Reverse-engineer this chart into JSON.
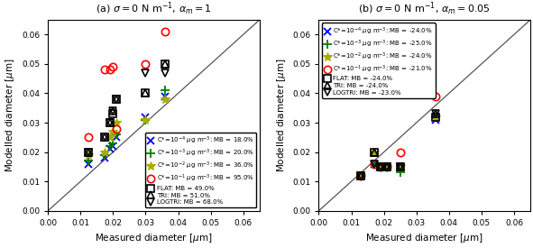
{
  "panel_a": {
    "title": "(a) $\\sigma = 0$ N m$^{-1}$, $\\alpha_m = 1$",
    "xlabel": "Measured diameter [$\\mu$m]",
    "ylabel": "Modelled diameter [$\\mu$m]",
    "xlim": [
      0.0,
      0.065
    ],
    "ylim": [
      0.0,
      0.065
    ],
    "xticks": [
      0.0,
      0.01,
      0.02,
      0.03,
      0.04,
      0.05,
      0.06
    ],
    "yticks": [
      0.0,
      0.01,
      0.02,
      0.03,
      0.04,
      0.05,
      0.06
    ],
    "series": {
      "C1e-4": {
        "label": "C*=10$^{-4}$ $\\mu$g m$^{-3}$: MB = 18.0%",
        "color": "blue",
        "marker": "x",
        "x": [
          0.0125,
          0.0175,
          0.019,
          0.02,
          0.021,
          0.03,
          0.036
        ],
        "y": [
          0.016,
          0.018,
          0.021,
          0.022,
          0.025,
          0.032,
          0.039
        ]
      },
      "C1e-3": {
        "label": "C*=10$^{-3}$ $\\mu$g m$^{-3}$: MB = 20.0%",
        "color": "green",
        "marker": "+",
        "x": [
          0.0125,
          0.0175,
          0.019,
          0.02,
          0.021,
          0.03,
          0.036
        ],
        "y": [
          0.017,
          0.019,
          0.022,
          0.023,
          0.026,
          0.031,
          0.041
        ]
      },
      "C1e-2": {
        "label": "C*=10$^{-2}$ $\\mu$g m$^{-3}$: MB = 36.0%",
        "color": "#aaaa00",
        "marker": "*",
        "x": [
          0.0125,
          0.0175,
          0.019,
          0.02,
          0.021,
          0.03,
          0.036
        ],
        "y": [
          0.019,
          0.02,
          0.025,
          0.027,
          0.03,
          0.031,
          0.038
        ]
      },
      "C1e-1": {
        "label": "C*=10$^{-1}$ $\\mu$g m$^{-3}$: MB = 95.0%",
        "color": "red",
        "marker": "o",
        "x": [
          0.0125,
          0.0175,
          0.019,
          0.02,
          0.021,
          0.03,
          0.036
        ],
        "y": [
          0.025,
          0.048,
          0.048,
          0.049,
          0.028,
          0.05,
          0.061
        ]
      },
      "FLAT": {
        "label": "FLAT: MB = 49.0%",
        "color": "black",
        "marker": "s",
        "x": [
          0.0125,
          0.0175,
          0.019,
          0.02,
          0.021,
          0.03,
          0.036
        ],
        "y": [
          0.02,
          0.025,
          0.03,
          0.033,
          0.038,
          0.04,
          0.05
        ]
      },
      "TRI": {
        "label": "TRI: MB = 51.0%",
        "color": "black",
        "marker": "^",
        "x": [
          0.0125,
          0.0175,
          0.019,
          0.02,
          0.021,
          0.03,
          0.036
        ],
        "y": [
          0.02,
          0.025,
          0.03,
          0.034,
          0.038,
          0.04,
          0.05
        ]
      },
      "LOGTRI": {
        "label": "LOGTRI: MB = 68.0%",
        "color": "black",
        "marker": "v",
        "x": [
          0.0125,
          0.0175,
          0.019,
          0.02,
          0.021,
          0.03,
          0.036
        ],
        "y": [
          0.02,
          0.025,
          0.03,
          0.034,
          0.038,
          0.047,
          0.047
        ]
      }
    }
  },
  "panel_b": {
    "title": "(b) $\\sigma = 0$ N m$^{-1}$, $\\alpha_m = 0.05$",
    "xlabel": "Measured diameter [$\\mu$m]",
    "ylabel": "Modelled diameter [$\\mu$m]",
    "xlim": [
      0.0,
      0.065
    ],
    "ylim": [
      0.0,
      0.065
    ],
    "xticks": [
      0.0,
      0.01,
      0.02,
      0.03,
      0.04,
      0.05,
      0.06
    ],
    "yticks": [
      0.0,
      0.01,
      0.02,
      0.03,
      0.04,
      0.05,
      0.06
    ],
    "series": {
      "C1e-4": {
        "label": "C*=10$^{-4}$ $\\mu$g m$^{-3}$: MB = -24.0%",
        "color": "blue",
        "marker": "x",
        "x": [
          0.013,
          0.017,
          0.019,
          0.021,
          0.025,
          0.036
        ],
        "y": [
          0.012,
          0.016,
          0.015,
          0.015,
          0.015,
          0.031
        ]
      },
      "C1e-3": {
        "label": "C*=10$^{-3}$ $\\mu$g m$^{-3}$: MB = -25.0%",
        "color": "green",
        "marker": "+",
        "x": [
          0.013,
          0.017,
          0.019,
          0.021,
          0.025,
          0.036
        ],
        "y": [
          0.012,
          0.016,
          0.015,
          0.015,
          0.013,
          0.032
        ]
      },
      "C1e-2": {
        "label": "C*=10$^{-2}$ $\\mu$g m$^{-3}$: MB = -24.0%",
        "color": "#aaaa00",
        "marker": "*",
        "x": [
          0.013,
          0.017,
          0.019,
          0.021,
          0.025,
          0.036
        ],
        "y": [
          0.012,
          0.02,
          0.015,
          0.015,
          0.015,
          0.032
        ]
      },
      "C1e-1": {
        "label": "C*=10$^{-1}$ $\\mu$g m$^{-3}$: MB = -21.0%",
        "color": "red",
        "marker": "o",
        "x": [
          0.013,
          0.017,
          0.019,
          0.021,
          0.025,
          0.036
        ],
        "y": [
          0.012,
          0.016,
          0.015,
          0.015,
          0.02,
          0.039
        ]
      },
      "FLAT": {
        "label": "FLAT: MB = -24.0%",
        "color": "black",
        "marker": "s",
        "x": [
          0.013,
          0.017,
          0.019,
          0.021,
          0.025,
          0.036
        ],
        "y": [
          0.012,
          0.02,
          0.015,
          0.015,
          0.015,
          0.032
        ]
      },
      "TRI": {
        "label": "TRI: MB = -24.0%",
        "color": "black",
        "marker": "^",
        "x": [
          0.013,
          0.017,
          0.019,
          0.021,
          0.025,
          0.036
        ],
        "y": [
          0.012,
          0.02,
          0.015,
          0.015,
          0.015,
          0.033
        ]
      },
      "LOGTRI": {
        "label": "LOGTRI: MB = -23.0%",
        "color": "black",
        "marker": "v",
        "x": [
          0.013,
          0.017,
          0.019,
          0.021,
          0.025,
          0.036
        ],
        "y": [
          0.012,
          0.016,
          0.015,
          0.015,
          0.015,
          0.033
        ]
      }
    }
  }
}
